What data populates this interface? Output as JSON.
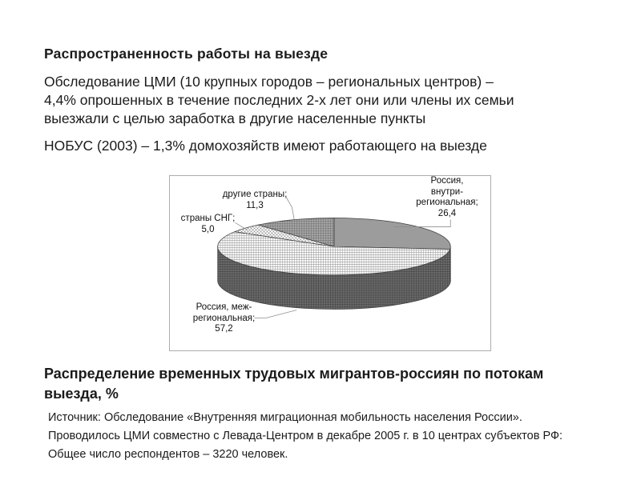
{
  "slide": {
    "title": "Распространенность работы на выезде",
    "para1_lines": [
      "Обследование ЦМИ (10 крупных городов – региональных центров) –",
      "4,4% опрошенных в течение последних 2-х лет они или члены их семьи",
      "выезжали с целью заработка в другие населенные пункты"
    ],
    "para2": "НОБУС (2003) – 1,3% домохозяйств имеют работающего на выезде",
    "caption_lines": [
      "Распределение временных трудовых мигрантов-россиян по потокам",
      "выезда, %"
    ],
    "source_lines": [
      "Источник: Обследование «Внутренняя миграционная мобильность населения России».",
      "Проводилось ЦМИ совместно с Левада-Центром в декабре 2005 г. в 10 центрах субъектов РФ:",
      "Общее число респондентов – 3220 человек."
    ]
  },
  "chart_data": {
    "type": "pie",
    "style": "3d-cylinder",
    "title": "Распределение временных трудовых мигрантов-россиян по потокам выезда, %",
    "unit": "%",
    "categories": [
      "Россия, внутри-региональная",
      "Россия, меж-региональная",
      "страны СНГ",
      "другие страны"
    ],
    "values": [
      26.4,
      57.2,
      5.0,
      11.3
    ],
    "start_angle_deg": 0,
    "direction": "clockwise",
    "legend_position": "none",
    "fill_styles": [
      "solid-gray",
      "light-grid",
      "diagonal-hatch",
      "gray-grid"
    ],
    "labels": {
      "intra": [
        "Россия,",
        "внутри-",
        "региональная;",
        "26,4"
      ],
      "inter": [
        "Россия, меж-",
        "региональная;",
        "57,2"
      ],
      "cis": [
        "страны СНГ;",
        "5,0"
      ],
      "other": [
        "другие страны;",
        "11,3"
      ]
    },
    "colors": {
      "slice_solid": "#9c9c9c",
      "side_dark": "#6d6d6d",
      "grid_line": "#989898",
      "outline": "#3f3f3f",
      "frame_border": "#adadad",
      "leader_line": "#8f8f8f",
      "text": "#111111"
    }
  }
}
